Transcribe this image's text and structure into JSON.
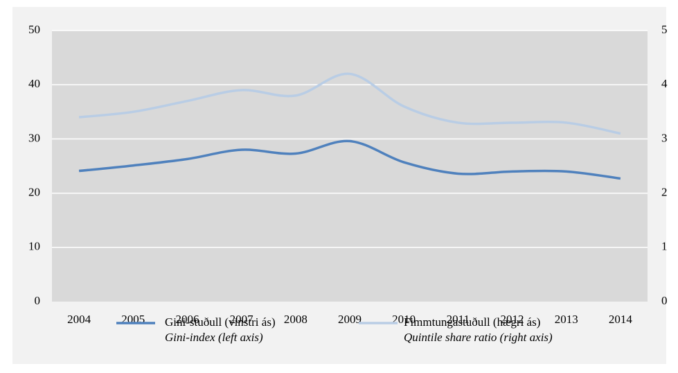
{
  "chart_data": {
    "type": "line",
    "categories": [
      "2004",
      "2005",
      "2006",
      "2007",
      "2008",
      "2009",
      "2010",
      "2011",
      "2012",
      "2013",
      "2014"
    ],
    "series": [
      {
        "name": "Gini-stuðull (vinstri ás)",
        "name_en": "Gini-index (left axis)",
        "color": "#4f81bd",
        "axis": "y",
        "values": [
          24.1,
          25.1,
          26.3,
          28.0,
          27.3,
          29.6,
          25.7,
          23.6,
          24.0,
          24.0,
          22.7
        ]
      },
      {
        "name": "Fimmtungastuðull (hægri ás)",
        "name_en": "Quintile share ratio (right axis)",
        "color": "#b9cde5",
        "axis": "y2",
        "values": [
          3.4,
          3.5,
          3.7,
          3.9,
          3.8,
          4.2,
          3.6,
          3.3,
          3.3,
          3.3,
          3.1
        ]
      }
    ],
    "ylim": [
      0,
      50
    ],
    "yticks": [
      0,
      10,
      20,
      30,
      40,
      50
    ],
    "y2lim": [
      0,
      5
    ],
    "y2ticks": [
      0,
      1,
      2,
      3,
      4,
      5
    ],
    "grid": true
  }
}
